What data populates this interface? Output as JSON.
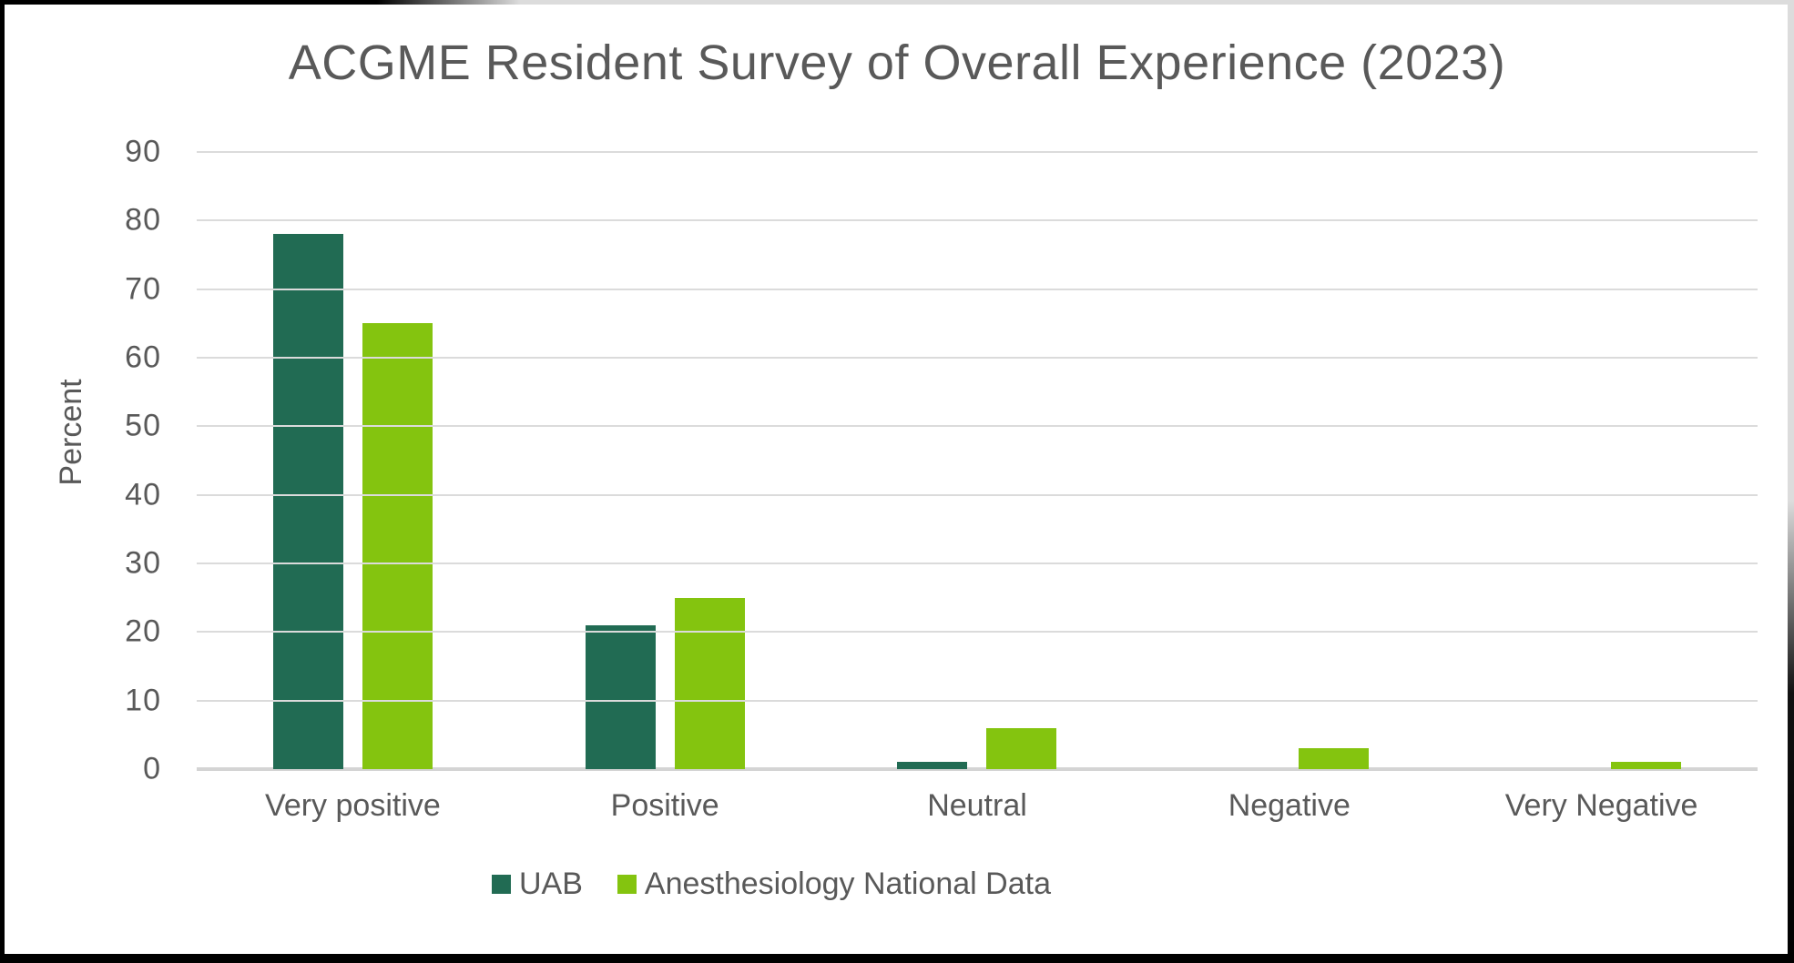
{
  "chart_data": {
    "type": "bar",
    "title": "ACGME Resident Survey of Overall Experience (2023)",
    "ylabel": "Percent",
    "xlabel": "",
    "categories": [
      "Very positive",
      "Positive",
      "Neutral",
      "Negative",
      "Very Negative"
    ],
    "series": [
      {
        "name": "UAB",
        "color": "#216B53",
        "values": [
          78,
          21,
          1,
          0,
          0
        ]
      },
      {
        "name": "Anesthesiology National Data",
        "color": "#84C40F",
        "values": [
          65,
          25,
          6,
          3,
          1
        ]
      }
    ],
    "ylim": [
      0,
      90
    ],
    "ytick_step": 10,
    "grid": true,
    "legend_position": "bottom",
    "text_color": "#595959",
    "gridline_color": "#dbdbdb"
  }
}
